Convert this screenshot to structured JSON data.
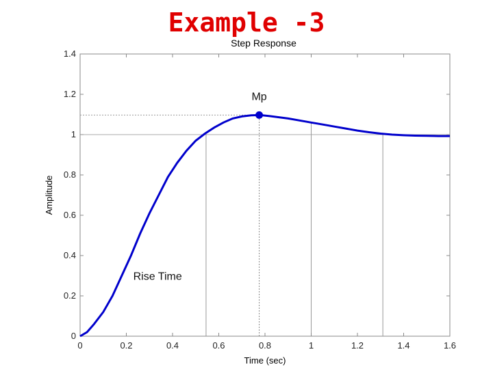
{
  "slide": {
    "title": "Example -3"
  },
  "chart_data": {
    "type": "line",
    "title": "Step Response",
    "xlabel": "Time (sec)",
    "ylabel": "Amplitude",
    "xlim": [
      0,
      1.6
    ],
    "ylim": [
      0,
      1.4
    ],
    "xticks": [
      0,
      0.2,
      0.4,
      0.6,
      0.8,
      1,
      1.2,
      1.4,
      1.6
    ],
    "xtick_labels": [
      "0",
      "0.2",
      "0.4",
      "0.6",
      "0.8",
      "1",
      "1.2",
      "1.4",
      "1.6"
    ],
    "yticks": [
      0,
      0.2,
      0.4,
      0.6,
      0.8,
      1,
      1.2,
      1.4
    ],
    "ytick_labels": [
      "0",
      "0.2",
      "0.4",
      "0.6",
      "0.8",
      "1",
      "1.2",
      "1.4"
    ],
    "grid": false,
    "line_color": "#0000cc",
    "series": [
      {
        "x": [
          0,
          0.03,
          0.06,
          0.1,
          0.14,
          0.18,
          0.22,
          0.26,
          0.3,
          0.34,
          0.38,
          0.42,
          0.46,
          0.5,
          0.54,
          0.58,
          0.62,
          0.66,
          0.7,
          0.74,
          0.78,
          0.82,
          0.86,
          0.9,
          0.95,
          1,
          1.05,
          1.1,
          1.15,
          1.2,
          1.25,
          1.3,
          1.35,
          1.4,
          1.45,
          1.5,
          1.55,
          1.6
        ],
        "y": [
          0,
          0.02,
          0.06,
          0.12,
          0.2,
          0.3,
          0.4,
          0.51,
          0.61,
          0.7,
          0.79,
          0.86,
          0.92,
          0.97,
          1.005,
          1.035,
          1.06,
          1.08,
          1.09,
          1.096,
          1.097,
          1.092,
          1.086,
          1.08,
          1.07,
          1.06,
          1.05,
          1.04,
          1.03,
          1.02,
          1.012,
          1.005,
          1.0,
          0.997,
          0.995,
          0.994,
          0.993,
          0.993
        ]
      }
    ],
    "peak_point": {
      "x": 0.775,
      "y": 1.097,
      "label": "Mp"
    },
    "reference_lines": [
      {
        "type": "horizontal",
        "y": 1.0
      },
      {
        "type": "horizontal",
        "y": 1.097
      },
      {
        "type": "vertical",
        "x": 0.775
      },
      {
        "type": "vertical",
        "x": 0.545
      },
      {
        "type": "vertical",
        "x": 1.0
      },
      {
        "type": "vertical",
        "x": 1.31
      }
    ],
    "annotations": [
      {
        "text": "Rise Time",
        "x": 0.23,
        "y": 0.28
      }
    ]
  }
}
